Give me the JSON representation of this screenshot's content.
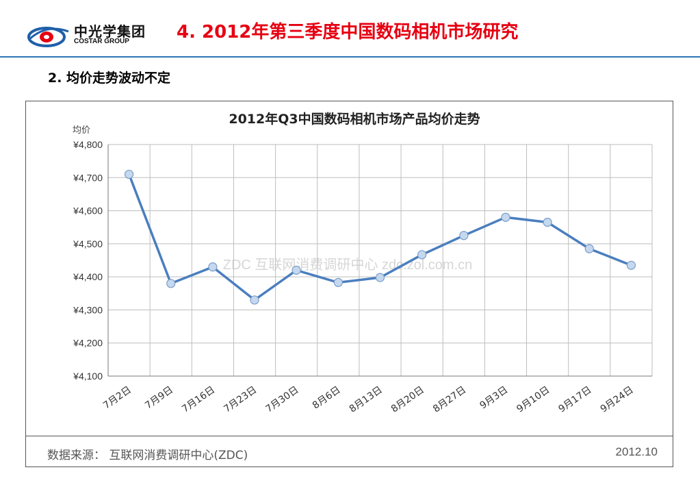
{
  "header": {
    "logo_cn": "中光学集团",
    "logo_en": "COSTAR GROUP",
    "title": "4. 2012年第三季度中国数码相机市场研究",
    "subtitle": "2.   均价走势波动不定"
  },
  "footer": {
    "source": "数据来源：  互联网消费调研中心(ZDC)",
    "date": "2012.10"
  },
  "watermark": "ZDC 互联网消费调研中心 zdc.zol.com.cn",
  "colors": {
    "title": "#e60012",
    "rule": "#2e75b6",
    "line": "#4a7ebf",
    "marker": "#c5d8ee"
  },
  "chart_data": {
    "type": "line",
    "title": "2012年Q3中国数码相机市场产品均价走势",
    "ylabel": "均价",
    "ylim": [
      4100,
      4800
    ],
    "yticks": [
      4100,
      4200,
      4300,
      4400,
      4500,
      4600,
      4700,
      4800
    ],
    "ytick_labels": [
      "¥4,100",
      "¥4,200",
      "¥4,300",
      "¥4,400",
      "¥4,500",
      "¥4,600",
      "¥4,700",
      "¥4,800"
    ],
    "categories": [
      "7月2日",
      "7月9日",
      "7月16日",
      "7月23日",
      "7月30日",
      "8月6日",
      "8月13日",
      "8月20日",
      "8月27日",
      "9月3日",
      "9月10日",
      "9月17日",
      "9月24日"
    ],
    "series": [
      {
        "values": [
          4710,
          4380,
          4430,
          4330,
          4420,
          4383,
          4398,
          4467,
          4525,
          4580,
          4565,
          4485,
          4435
        ]
      }
    ],
    "grid": true,
    "legend": "none"
  }
}
